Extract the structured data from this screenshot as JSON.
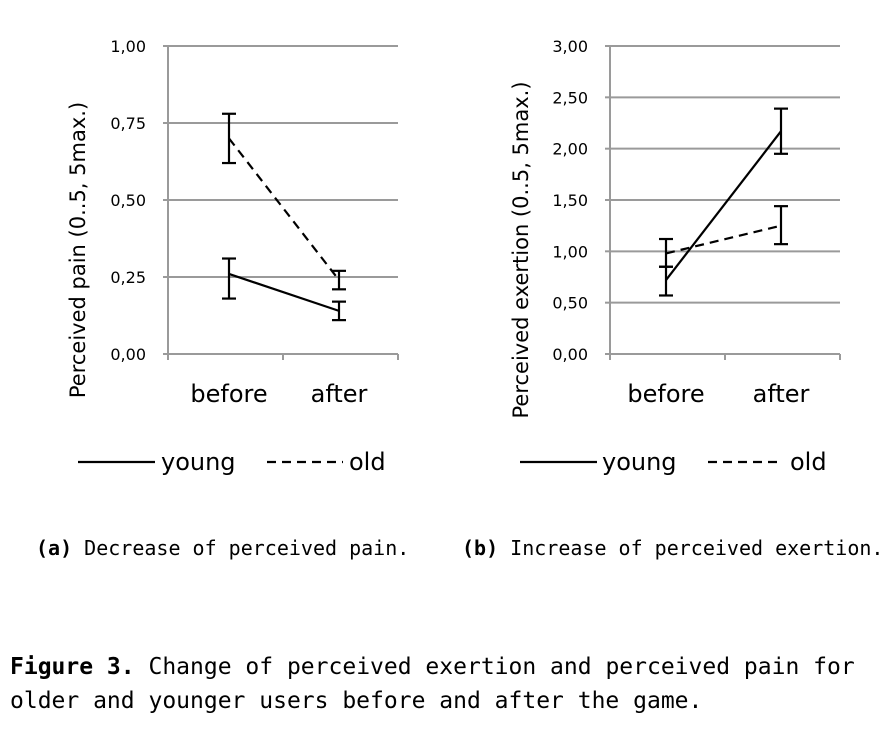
{
  "chart_data": [
    {
      "type": "line",
      "ylabel": "Perceived pain (0..5, 5max.)",
      "categories": [
        "before",
        "after"
      ],
      "yticks": [
        "0,00",
        "0,25",
        "0,50",
        "0,75",
        "1,00"
      ],
      "ylim": [
        0,
        1
      ],
      "grid": true,
      "legend": "bottom",
      "series": [
        {
          "name": "young",
          "style": "solid",
          "values": [
            0.26,
            0.14
          ],
          "err_low": [
            0.18,
            0.11
          ],
          "err_high": [
            0.31,
            0.17
          ]
        },
        {
          "name": "old",
          "style": "dashed",
          "values": [
            0.7,
            0.24
          ],
          "err_low": [
            0.62,
            0.21
          ],
          "err_high": [
            0.78,
            0.27
          ]
        }
      ]
    },
    {
      "type": "line",
      "ylabel": "Perceived exertion (0..5, 5max.)",
      "categories": [
        "before",
        "after"
      ],
      "yticks": [
        "0,00",
        "0,50",
        "1,00",
        "1,50",
        "2,00",
        "2,50",
        "3,00"
      ],
      "ylim": [
        0,
        3
      ],
      "grid": true,
      "legend": "bottom",
      "series": [
        {
          "name": "young",
          "style": "solid",
          "values": [
            0.72,
            2.17
          ],
          "err_low": [
            0.57,
            1.95
          ],
          "err_high": [
            0.85,
            2.39
          ]
        },
        {
          "name": "old",
          "style": "dashed",
          "values": [
            0.98,
            1.25
          ],
          "err_low": [
            0.85,
            1.07
          ],
          "err_high": [
            1.12,
            1.44
          ]
        }
      ]
    }
  ],
  "subcaptions": [
    {
      "label": "(a)",
      "text": "Decrease of perceived pain."
    },
    {
      "label": "(b)",
      "text": "Increase of perceived exertion."
    }
  ],
  "caption": {
    "label": "Figure 3.",
    "text": "Change of perceived exertion and perceived pain for older and younger users before and after the game."
  },
  "colors": {
    "line": "#000000",
    "grid": "#9a9a9a"
  }
}
